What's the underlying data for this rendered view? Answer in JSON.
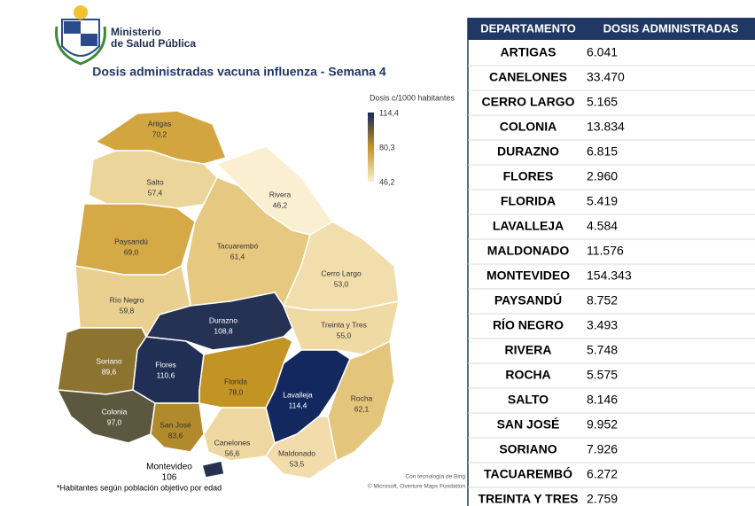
{
  "header": {
    "ministry": [
      "Ministerio",
      "de Salud Pública"
    ]
  },
  "title": "Dosis administradas vacuna influenza - Semana 4",
  "legend": {
    "title": "Dosis c/1000 habitantes",
    "max": "114,4",
    "mid": "80,3",
    "min": "46,2"
  },
  "map": {
    "regions": [
      {
        "name": "Artigas",
        "value": "70,2",
        "color": "#d2a541"
      },
      {
        "name": "Salto",
        "value": "57,4",
        "color": "#ecd59b"
      },
      {
        "name": "Rivera",
        "value": "46,2",
        "color": "#faefd0"
      },
      {
        "name": "Paysandú",
        "value": "69,0",
        "color": "#d4a946"
      },
      {
        "name": "Tacuarembó",
        "value": "61,4",
        "color": "#e6c880"
      },
      {
        "name": "Cerro Largo",
        "value": "53,0",
        "color": "#f2deac"
      },
      {
        "name": "Río Negro",
        "value": "59,8",
        "color": "#e9d090"
      },
      {
        "name": "Durazno",
        "value": "108,8",
        "color": "#253253"
      },
      {
        "name": "Treinta y Tres",
        "value": "55,0",
        "color": "#f0daa4"
      },
      {
        "name": "Soriano",
        "value": "89,6",
        "color": "#8d7330"
      },
      {
        "name": "Flores",
        "value": "110,6",
        "color": "#222f54"
      },
      {
        "name": "Florida",
        "value": "78,0",
        "color": "#c29423"
      },
      {
        "name": "Lavalleja",
        "value": "114,4",
        "color": "#13285e"
      },
      {
        "name": "Rocha",
        "value": "62,1",
        "color": "#e4c57c"
      },
      {
        "name": "Colonia",
        "value": "97,0",
        "color": "#5c5840"
      },
      {
        "name": "San José",
        "value": "83,6",
        "color": "#b08a2c"
      },
      {
        "name": "Canelones",
        "value": "56,6",
        "color": "#eed7a1"
      },
      {
        "name": "Maldonado",
        "value": "53,5",
        "color": "#f2dcab"
      },
      {
        "name": "Montevideo",
        "value": "106",
        "color": "#27314f"
      }
    ],
    "attribution": [
      "Con tecnología de Bing",
      "© Microsoft, Overture Maps Fundation"
    ]
  },
  "footnote": "*Habitantes según población objetivo por edad",
  "table": {
    "columns": [
      "DEPARTAMENTO",
      "DOSIS ADMINISTRADAS"
    ],
    "rows": [
      [
        "ARTIGAS",
        "6.041"
      ],
      [
        "CANELONES",
        "33.470"
      ],
      [
        "CERRO LARGO",
        "5.165"
      ],
      [
        "COLONIA",
        "13.834"
      ],
      [
        "DURAZNO",
        "6.815"
      ],
      [
        "FLORES",
        "2.960"
      ],
      [
        "FLORIDA",
        "5.419"
      ],
      [
        "LAVALLEJA",
        "4.584"
      ],
      [
        "MALDONADO",
        "11.576"
      ],
      [
        "MONTEVIDEO",
        "154.343"
      ],
      [
        "PAYSANDÚ",
        "8.752"
      ],
      [
        "RÍO NEGRO",
        "3.493"
      ],
      [
        "RIVERA",
        "5.748"
      ],
      [
        "ROCHA",
        "5.575"
      ],
      [
        "SALTO",
        "8.146"
      ],
      [
        "SAN JOSÉ",
        "9.952"
      ],
      [
        "SORIANO",
        "7.926"
      ],
      [
        "TACUAREMBÓ",
        "6.272"
      ],
      [
        "TREINTA Y TRES",
        "2.759"
      ]
    ]
  }
}
